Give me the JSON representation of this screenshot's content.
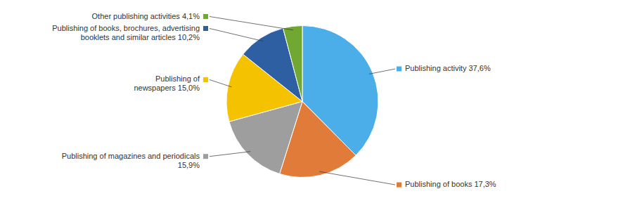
{
  "chart_data": {
    "type": "pie",
    "categories": [
      "Publishing activity 37,6%",
      "Publishing of books 17,3%",
      "Publishing of magazines and periodicals\n15,9%",
      "Publishing of\nnewspapers 15,0%",
      "Publishing of books, brochures, advertising\nbooklets and similar articles 10,2%",
      "Other publishing activities 4,1%"
    ],
    "values": [
      37.6,
      17.3,
      15.9,
      15.0,
      10.2,
      4.1
    ],
    "colors": [
      "#4BAEE8",
      "#E07B39",
      "#9E9E9E",
      "#F5C200",
      "#2E5FA3",
      "#70A832"
    ]
  }
}
